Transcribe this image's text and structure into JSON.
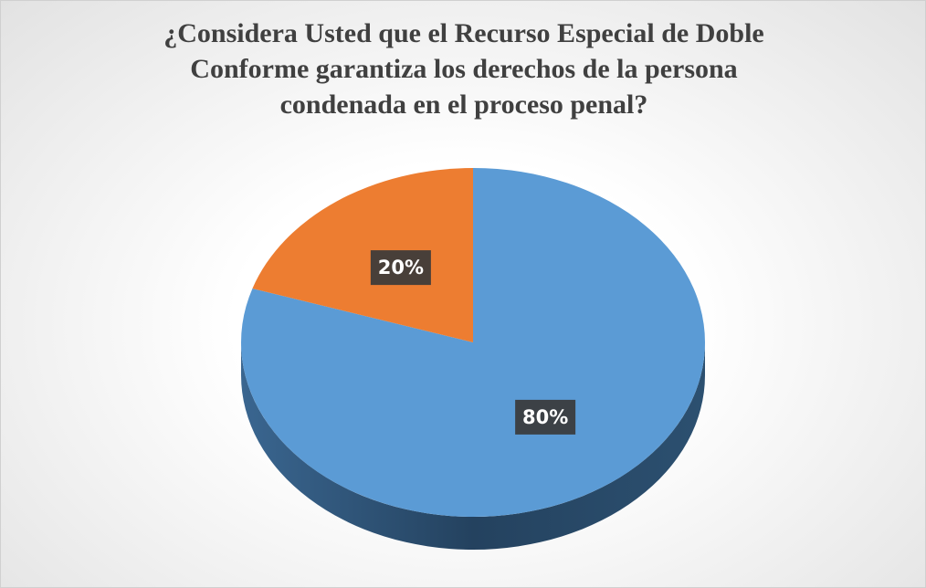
{
  "chart_data": {
    "type": "pie",
    "title": "¿Considera Usted que el Recurso Especial de Doble Conforme garantiza los derechos de la persona condenada en el proceso penal?",
    "values": [
      80,
      20
    ],
    "value_labels": [
      "80%",
      "20%"
    ],
    "colors": [
      "#5b9bd5",
      "#ed7d31"
    ]
  }
}
